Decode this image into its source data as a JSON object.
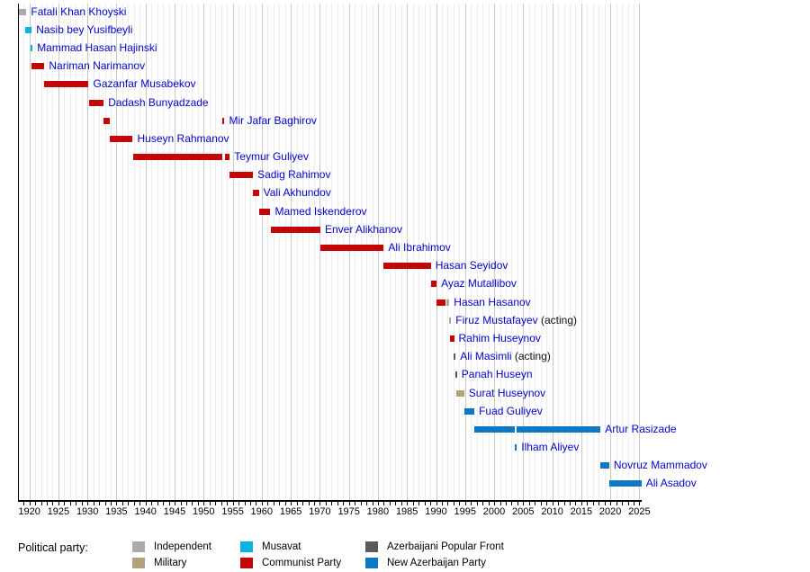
{
  "chart_data": {
    "type": "timeline",
    "description": "Gantt-style timeline of heads of government of Azerbaijan, colored by political party",
    "axis": {
      "start_year": 1918.2,
      "end_year": 2025.4,
      "tick_years": [
        1920,
        1925,
        1930,
        1935,
        1940,
        1945,
        1950,
        1955,
        1960,
        1965,
        1970,
        1975,
        1980,
        1985,
        1990,
        1995,
        2000,
        2005,
        2010,
        2015,
        2020,
        2025
      ],
      "minor_tick_every": 1,
      "grid": "vertical yearly gridlines, darker every 5 years",
      "legend_position": "bottom"
    },
    "parties": {
      "independent": {
        "label": "Independent",
        "color": "#ababab"
      },
      "military": {
        "label": "Military",
        "color": "#b3a179"
      },
      "musavat": {
        "label": "Musavat",
        "color": "#08b3e0"
      },
      "communist": {
        "label": "Communist Party",
        "color": "#c40606"
      },
      "popular_front": {
        "label": "Azerbaijani Popular Front",
        "color": "#5a5a5a"
      },
      "new_azerbaijan": {
        "label": "New Azerbaijan Party",
        "color": "#0f78c4"
      }
    },
    "rows": [
      {
        "name": "Fatali Khan Khoyski",
        "suffix": "",
        "party": "independent",
        "segments": [
          {
            "start": 1918.25,
            "end": 1919.5
          }
        ]
      },
      {
        "name": "Nasib bey Yusifbeyli",
        "suffix": "",
        "party": "musavat",
        "segments": [
          {
            "start": 1919.3,
            "end": 1920.4
          }
        ]
      },
      {
        "name": "Mammad Hasan Hajinski",
        "suffix": "",
        "party": "musavat",
        "segments": [
          {
            "start": 1920.25,
            "end": 1920.5
          }
        ]
      },
      {
        "name": "Nariman Narimanov",
        "suffix": "",
        "party": "communist",
        "segments": [
          {
            "start": 1920.4,
            "end": 1922.6
          }
        ]
      },
      {
        "name": "Gazanfar Musabekov",
        "suffix": "",
        "party": "communist",
        "segments": [
          {
            "start": 1922.6,
            "end": 1930.2
          }
        ]
      },
      {
        "name": "Dadash Bunyadzade",
        "suffix": "",
        "party": "communist",
        "segments": [
          {
            "start": 1930.2,
            "end": 1932.8
          }
        ]
      },
      {
        "name": "Mir Jafar Baghirov",
        "suffix": "",
        "party": "communist",
        "segments": [
          {
            "start": 1932.8,
            "end": 1933.9
          },
          {
            "start": 1953.2,
            "end": 1953.6
          }
        ]
      },
      {
        "name": "Huseyn Rahmanov",
        "suffix": "",
        "party": "communist",
        "segments": [
          {
            "start": 1933.9,
            "end": 1937.8
          }
        ]
      },
      {
        "name": "Teymur Guliyev",
        "suffix": "",
        "party": "communist",
        "segments": [
          {
            "start": 1937.8,
            "end": 1953.2
          },
          {
            "start": 1953.6,
            "end": 1954.5
          }
        ]
      },
      {
        "name": "Sadig Rahimov",
        "suffix": "",
        "party": "communist",
        "segments": [
          {
            "start": 1954.5,
            "end": 1958.5
          }
        ]
      },
      {
        "name": "Vali Akhundov",
        "suffix": "",
        "party": "communist",
        "segments": [
          {
            "start": 1958.5,
            "end": 1959.5
          }
        ]
      },
      {
        "name": "Mamed Iskenderov",
        "suffix": "",
        "party": "communist",
        "segments": [
          {
            "start": 1959.5,
            "end": 1961.5
          }
        ]
      },
      {
        "name": "Enver Alikhanov",
        "suffix": "",
        "party": "communist",
        "segments": [
          {
            "start": 1961.5,
            "end": 1970.1
          }
        ]
      },
      {
        "name": "Ali Ibrahimov",
        "suffix": "",
        "party": "communist",
        "segments": [
          {
            "start": 1970.1,
            "end": 1981.0
          }
        ]
      },
      {
        "name": "Hasan Seyidov",
        "suffix": "",
        "party": "communist",
        "segments": [
          {
            "start": 1981.0,
            "end": 1989.1
          }
        ]
      },
      {
        "name": "Ayaz Mutallibov",
        "suffix": "",
        "party": "communist",
        "segments": [
          {
            "start": 1989.1,
            "end": 1990.1
          }
        ]
      },
      {
        "name": "Hasan Hasanov",
        "suffix": "",
        "party": "communist",
        "segments": [
          {
            "start": 1990.1,
            "end": 1991.7
          },
          {
            "start": 1991.7,
            "end": 1992.3,
            "party": "independent"
          }
        ]
      },
      {
        "name": "Firuz Mustafayev",
        "suffix": "(acting)",
        "party": "independent",
        "segments": [
          {
            "start": 1992.3,
            "end": 1992.55
          }
        ]
      },
      {
        "name": "Rahim Huseynov",
        "suffix": "",
        "party": "communist",
        "segments": [
          {
            "start": 1992.4,
            "end": 1993.1
          }
        ]
      },
      {
        "name": "Ali Masimli",
        "suffix": "(acting)",
        "party": "popular_front",
        "segments": [
          {
            "start": 1993.05,
            "end": 1993.3
          }
        ]
      },
      {
        "name": "Panah Huseyn",
        "suffix": "",
        "party": "popular_front",
        "segments": [
          {
            "start": 1993.3,
            "end": 1993.55
          }
        ]
      },
      {
        "name": "Surat Huseynov",
        "suffix": "",
        "party": "military",
        "segments": [
          {
            "start": 1993.5,
            "end": 1994.85
          }
        ]
      },
      {
        "name": "Fuad Guliyev",
        "suffix": "",
        "party": "new_azerbaijan",
        "segments": [
          {
            "start": 1994.85,
            "end": 1996.6
          }
        ]
      },
      {
        "name": "Artur Rasizade",
        "suffix": "",
        "party": "new_azerbaijan",
        "segments": [
          {
            "start": 1996.6,
            "end": 2003.6
          },
          {
            "start": 2003.85,
            "end": 2018.3
          }
        ]
      },
      {
        "name": "Ilham Aliyev",
        "suffix": "",
        "party": "new_azerbaijan",
        "segments": [
          {
            "start": 2003.6,
            "end": 2003.9
          }
        ]
      },
      {
        "name": "Novruz Mammadov",
        "suffix": "",
        "party": "new_azerbaijan",
        "segments": [
          {
            "start": 2018.3,
            "end": 2019.8
          }
        ]
      },
      {
        "name": "Ali Asadov",
        "suffix": "",
        "party": "new_azerbaijan",
        "segments": [
          {
            "start": 2019.8,
            "end": 2025.35
          }
        ]
      }
    ]
  },
  "legend": {
    "title": "Political party:",
    "columns": [
      [
        "independent",
        "military"
      ],
      [
        "musavat",
        "communist"
      ],
      [
        "popular_front",
        "new_azerbaijan"
      ]
    ]
  }
}
